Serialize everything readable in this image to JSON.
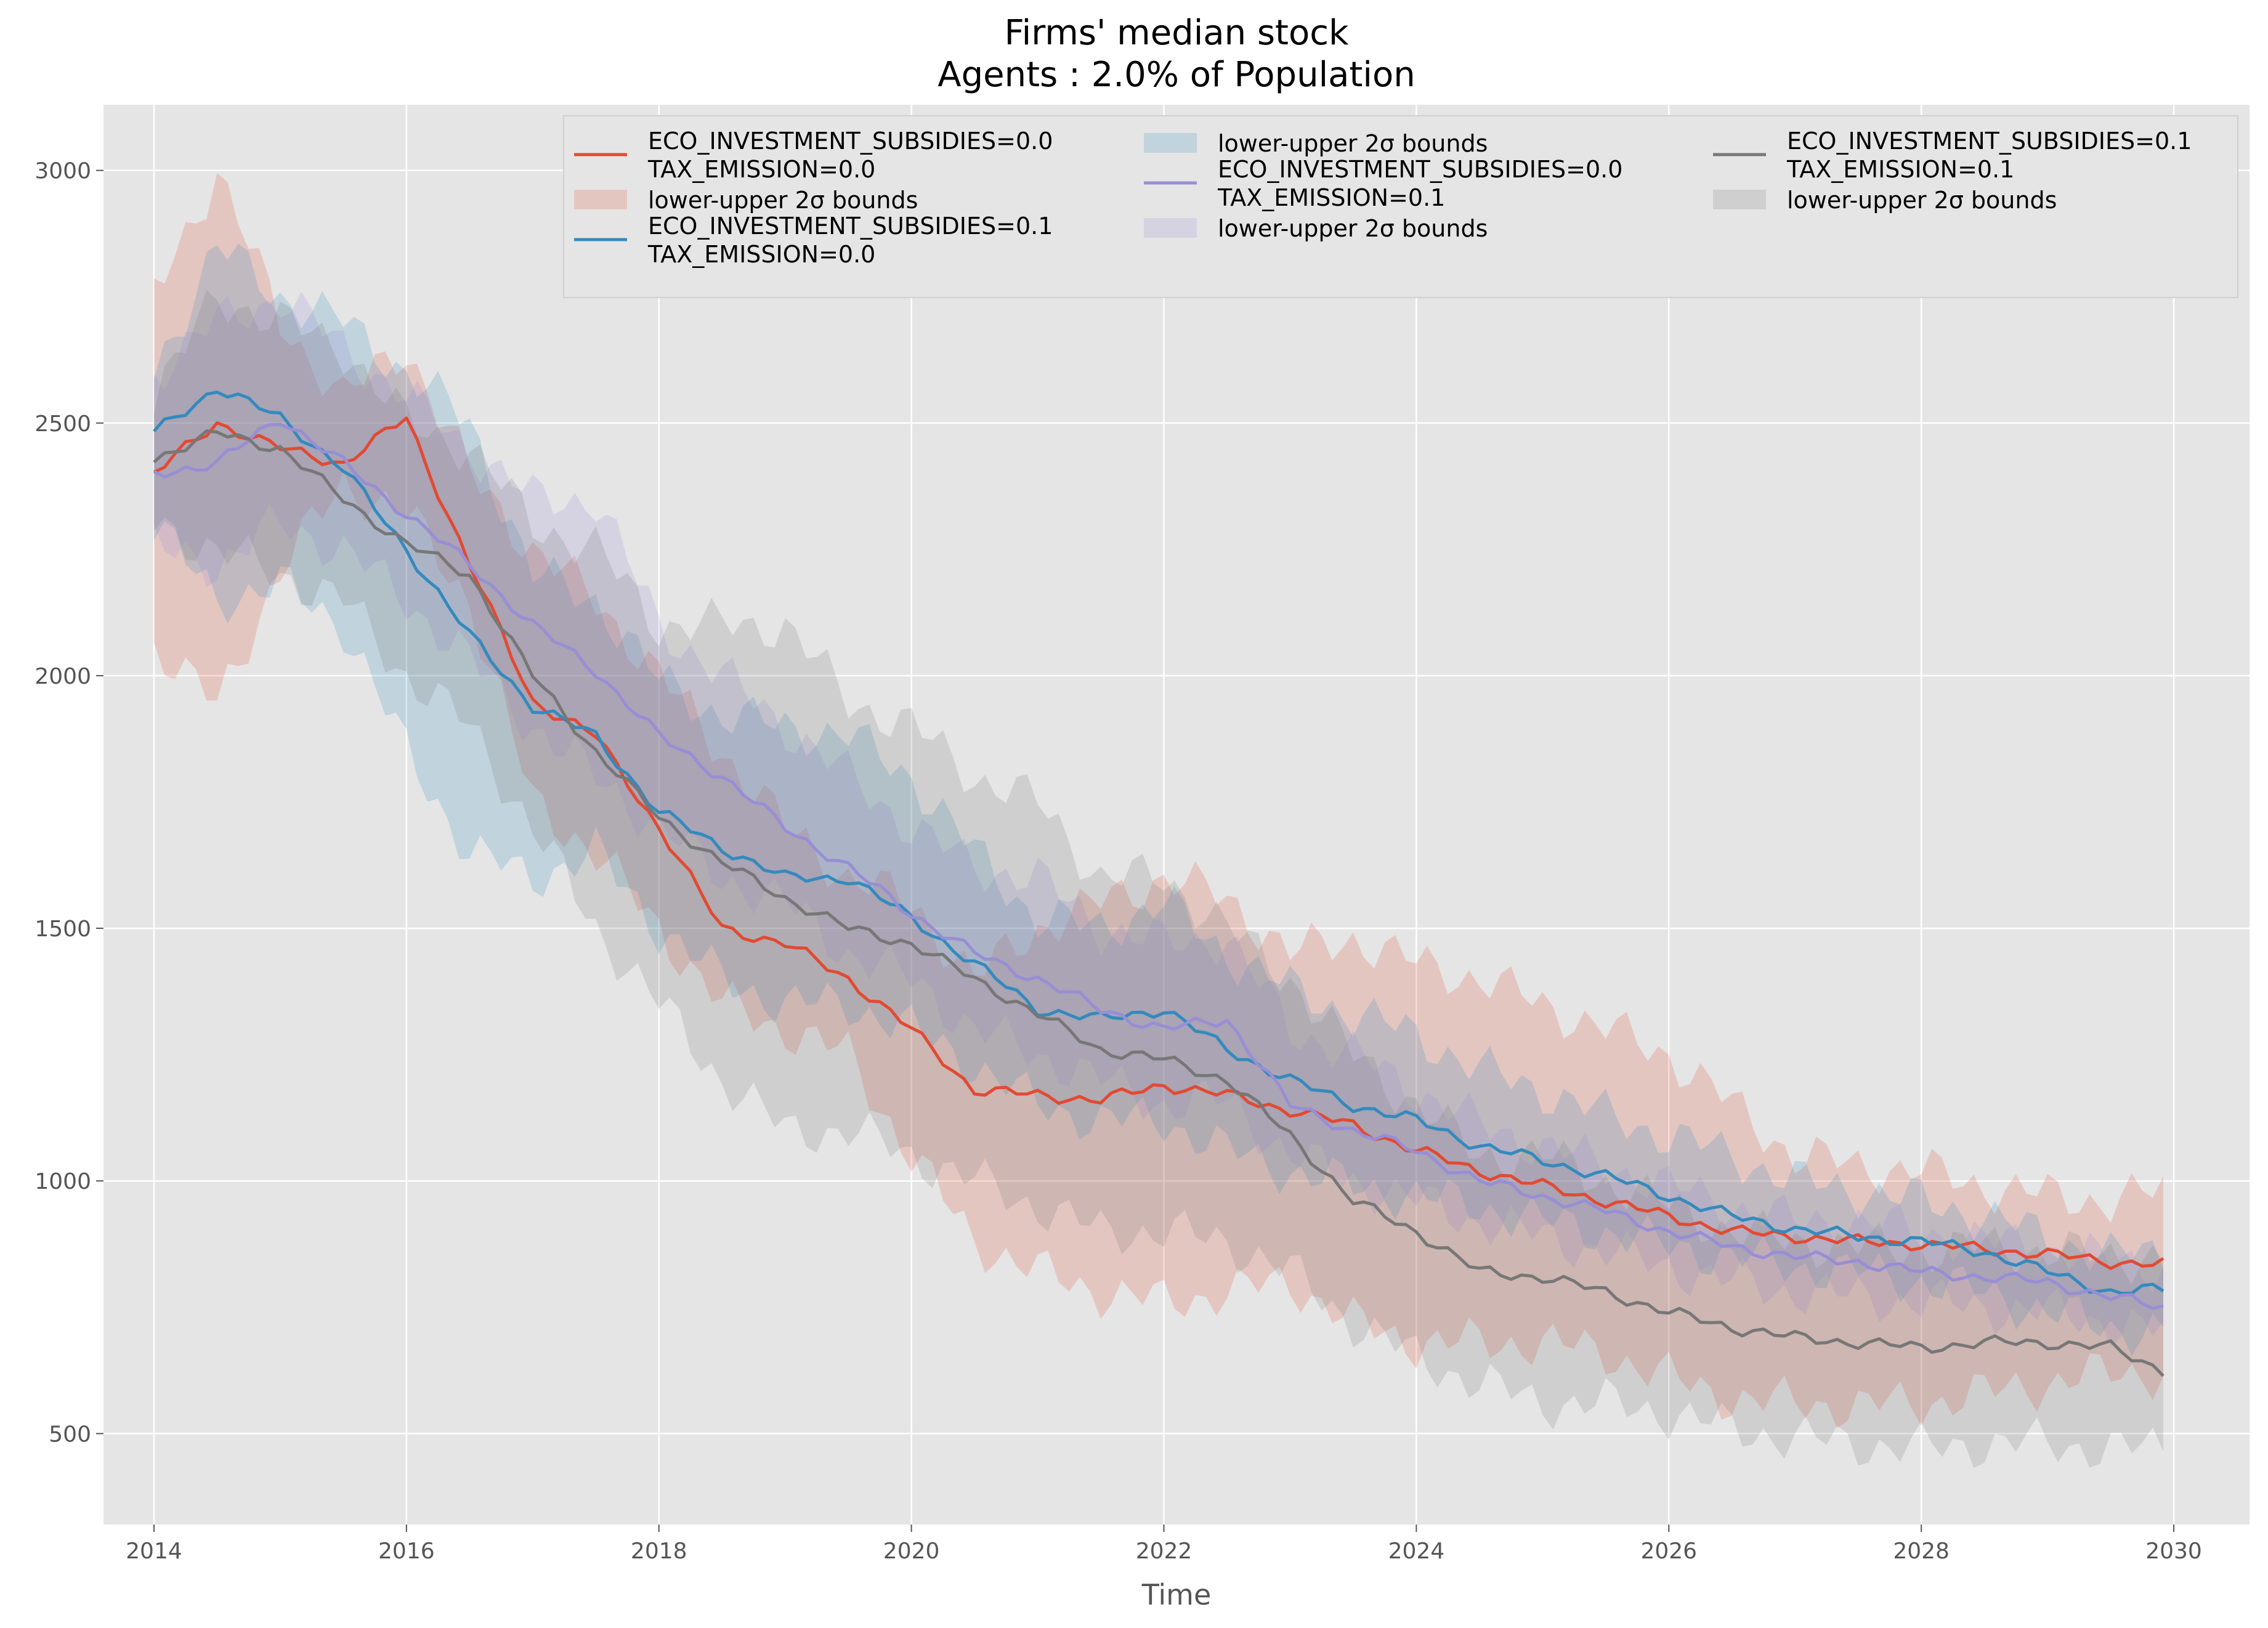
{
  "chart_data": {
    "type": "line",
    "title": "Firms' median stock",
    "subtitle": "Agents : 2.0% of Population",
    "xlabel": "Time",
    "ylabel": "",
    "xlim": [
      2013.6,
      2030.6
    ],
    "ylim": [
      320,
      3130
    ],
    "x_ticks": [
      2014,
      2016,
      2018,
      2020,
      2022,
      2024,
      2026,
      2028,
      2030
    ],
    "y_ticks": [
      500,
      1000,
      1500,
      2000,
      2500,
      3000
    ],
    "grid": true,
    "legend_position": "top-right",
    "band_label": "lower-upper 2σ bounds",
    "x_knots": [
      2014,
      2014.5,
      2015,
      2015.5,
      2016,
      2016.5,
      2017,
      2017.5,
      2018,
      2018.5,
      2019,
      2019.5,
      2020,
      2020.5,
      2021,
      2021.5,
      2022,
      2022.5,
      2023,
      2023.5,
      2024,
      2024.5,
      2025,
      2025.5,
      2026,
      2026.5,
      2027,
      2027.5,
      2028,
      2028.5,
      2029,
      2029.5,
      2029.92
    ],
    "series": [
      {
        "name": "ECO_INVESTMENT_SUBSIDIES=0.0\nTAX_EMISSION=0.0",
        "color": "#e24a33",
        "values": [
          2400,
          2500,
          2450,
          2420,
          2510,
          2220,
          1950,
          1880,
          1700,
          1500,
          1470,
          1400,
          1300,
          1180,
          1170,
          1160,
          1190,
          1170,
          1140,
          1110,
          1060,
          1020,
          990,
          960,
          930,
          900,
          890,
          880,
          875,
          865,
          855,
          840,
          835
        ],
        "lower": [
          2060,
          1940,
          2210,
          2380,
          2320,
          2150,
          1750,
          1650,
          1500,
          1350,
          1300,
          1250,
          1050,
          880,
          820,
          780,
          760,
          780,
          800,
          720,
          680,
          680,
          680,
          660,
          610,
          570,
          560,
          555,
          560,
          580,
          600,
          620,
          620
        ],
        "upper": [
          2750,
          3000,
          2700,
          2550,
          2650,
          2400,
          2250,
          2150,
          2000,
          1850,
          1700,
          1600,
          1550,
          1400,
          1500,
          1550,
          1600,
          1560,
          1450,
          1480,
          1430,
          1400,
          1350,
          1300,
          1250,
          1150,
          1050,
          1030,
          1020,
          990,
          970,
          960,
          980
        ]
      },
      {
        "name": "ECO_INVESTMENT_SUBSIDIES=0.1\nTAX_EMISSION=0.0",
        "color": "#348abd",
        "values": [
          2480,
          2570,
          2510,
          2410,
          2250,
          2080,
          1940,
          1880,
          1730,
          1660,
          1600,
          1600,
          1520,
          1430,
          1340,
          1320,
          1340,
          1260,
          1200,
          1150,
          1120,
          1070,
          1040,
          1010,
          970,
          930,
          905,
          890,
          880,
          860,
          820,
          780,
          785
        ],
        "lower": [
          2300,
          2150,
          2180,
          2100,
          1850,
          1650,
          1600,
          1650,
          1500,
          1400,
          1350,
          1350,
          1300,
          1230,
          1150,
          1120,
          1120,
          1060,
          1020,
          990,
          970,
          950,
          920,
          900,
          870,
          850,
          830,
          820,
          800,
          780,
          740,
          710,
          700
        ],
        "upper": [
          2600,
          2850,
          2750,
          2700,
          2600,
          2500,
          2200,
          2150,
          1990,
          1920,
          1900,
          1880,
          1800,
          1650,
          1520,
          1500,
          1550,
          1450,
          1380,
          1330,
          1290,
          1220,
          1180,
          1130,
          1090,
          1050,
          1000,
          980,
          960,
          930,
          890,
          850,
          860
        ]
      },
      {
        "name": "ECO_INVESTMENT_SUBSIDIES=0.0\nTAX_EMISSION=0.1",
        "color": "#988ed5",
        "values": [
          2400,
          2420,
          2510,
          2420,
          2320,
          2220,
          2100,
          2010,
          1880,
          1800,
          1700,
          1620,
          1530,
          1450,
          1400,
          1340,
          1300,
          1320,
          1150,
          1100,
          1060,
          1000,
          970,
          940,
          900,
          870,
          850,
          840,
          820,
          810,
          800,
          770,
          750
        ],
        "lower": [
          2250,
          2220,
          2300,
          2250,
          2150,
          2030,
          1900,
          1800,
          1700,
          1600,
          1550,
          1450,
          1400,
          1300,
          1250,
          1200,
          1150,
          1160,
          1050,
          1000,
          960,
          920,
          890,
          860,
          830,
          800,
          780,
          770,
          760,
          750,
          740,
          720,
          700
        ],
        "upper": [
          2600,
          2700,
          2750,
          2650,
          2550,
          2450,
          2350,
          2350,
          2100,
          2000,
          1900,
          1800,
          1700,
          1620,
          1600,
          1500,
          1470,
          1480,
          1300,
          1250,
          1180,
          1110,
          1070,
          1030,
          990,
          950,
          920,
          920,
          900,
          880,
          870,
          840,
          830
        ]
      },
      {
        "name": "ECO_INVESTMENT_SUBSIDIES=0.1\nTAX_EMISSION=0.1",
        "color": "#777777",
        "values": [
          2430,
          2480,
          2450,
          2350,
          2260,
          2200,
          2000,
          1850,
          1720,
          1630,
          1560,
          1500,
          1470,
          1400,
          1330,
          1260,
          1240,
          1200,
          1090,
          960,
          900,
          820,
          810,
          780,
          740,
          710,
          690,
          680,
          670,
          680,
          680,
          670,
          625
        ],
        "lower": [
          2300,
          2250,
          2200,
          2150,
          2000,
          1900,
          1700,
          1500,
          1350,
          1200,
          1100,
          1100,
          1050,
          1000,
          950,
          900,
          900,
          880,
          820,
          720,
          650,
          600,
          560,
          560,
          540,
          510,
          490,
          480,
          470,
          480,
          480,
          470,
          470
        ],
        "upper": [
          2550,
          2750,
          2700,
          2650,
          2500,
          2450,
          2300,
          2250,
          2100,
          2100,
          2100,
          1950,
          1900,
          1800,
          1750,
          1600,
          1600,
          1500,
          1400,
          1250,
          1150,
          1050,
          1050,
          1000,
          950,
          900,
          880,
          870,
          860,
          870,
          860,
          850,
          850
        ]
      }
    ]
  }
}
